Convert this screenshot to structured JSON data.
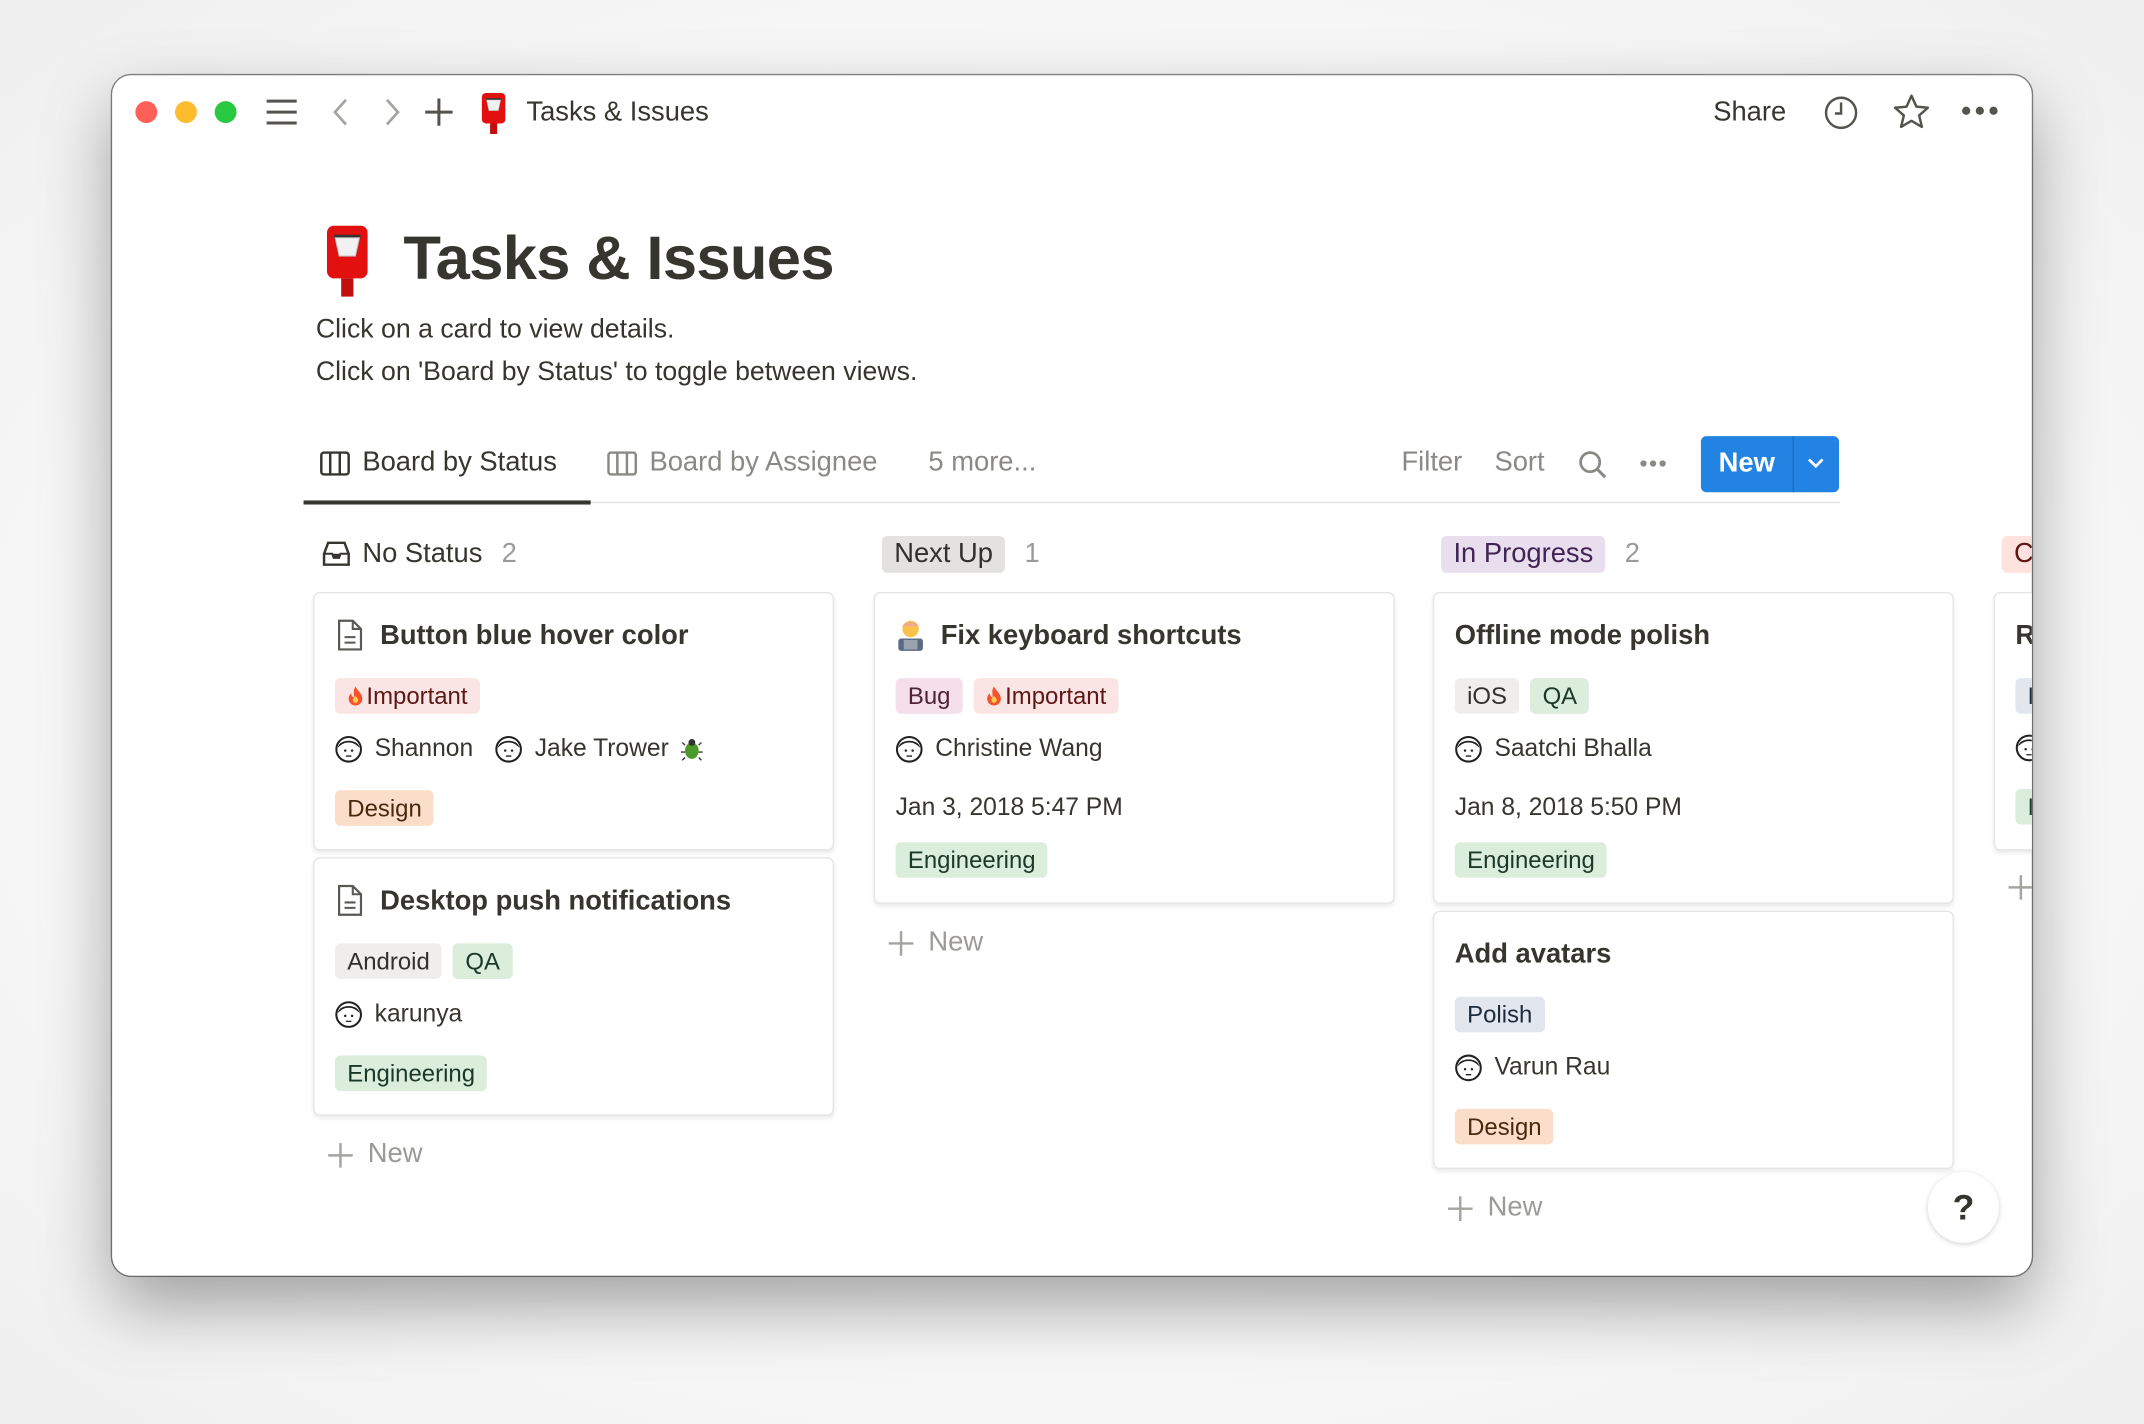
{
  "window": {
    "title": "Tasks & Issues",
    "share_label": "Share",
    "traffic_lights": {
      "close": "#ff5f57",
      "minimize": "#febc2e",
      "zoom": "#28c840"
    },
    "icons": [
      "menu-icon",
      "back-icon",
      "forward-icon",
      "plus-icon",
      "postbox-icon",
      "clock-icon",
      "star-icon",
      "more-icon"
    ]
  },
  "page": {
    "title": "Tasks & Issues",
    "icon": "postbox-icon",
    "description": [
      "Click on a card to view details.",
      "Click on 'Board by Status' to toggle between views."
    ]
  },
  "views": {
    "tabs": [
      {
        "label": "Board by Status",
        "active": true,
        "icon": "board-icon"
      },
      {
        "label": "Board by Assignee",
        "active": false,
        "icon": "board-icon"
      },
      {
        "label": "5 more...",
        "active": false
      }
    ],
    "filter_label": "Filter",
    "sort_label": "Sort",
    "new_label": "New",
    "accent": "#2383e2"
  },
  "tag_colors": {
    "red": {
      "bg": "#fbe4e4",
      "fg": "#5d1715"
    },
    "orange": {
      "bg": "#fadec9",
      "fg": "#49290e"
    },
    "green": {
      "bg": "#dbeddb",
      "fg": "#1c3829"
    },
    "gray": {
      "bg": "#efeeec",
      "fg": "#32302c"
    },
    "pink": {
      "bg": "#f4dfeb",
      "fg": "#4c2337"
    },
    "blue": {
      "bg": "#e2e6ee",
      "fg": "#1c2a3a"
    },
    "purple": {
      "bg": "#e8deee",
      "fg": "#412454"
    },
    "default": {
      "bg": "#e3e2e0",
      "fg": "#32302c"
    },
    "rose": {
      "bg": "#ffe2dd",
      "fg": "#5d1715"
    }
  },
  "columns": [
    {
      "name": "No Status",
      "count": "2",
      "style": "plain",
      "icon": "inbox-icon",
      "cards": [
        {
          "title": "Button blue hover color",
          "icon": "page-icon",
          "tags": [
            {
              "label": "Important",
              "color": "red",
              "icon": "fire-icon"
            }
          ],
          "people": [
            {
              "name": "Shannon"
            },
            {
              "name": "Jake Trower",
              "suffix_icon": "beetle-icon"
            }
          ],
          "team": {
            "label": "Design",
            "color": "orange"
          }
        },
        {
          "title": "Desktop push notifications",
          "icon": "page-icon",
          "tags": [
            {
              "label": "Android",
              "color": "gray"
            },
            {
              "label": "QA",
              "color": "green"
            }
          ],
          "people": [
            {
              "name": "karunya"
            }
          ],
          "team": {
            "label": "Engineering",
            "color": "green"
          }
        }
      ],
      "new_label": "New"
    },
    {
      "name": "Next Up",
      "count": "1",
      "style": "default",
      "cards": [
        {
          "title": "Fix keyboard shortcuts",
          "icon": "technologist-icon",
          "tags": [
            {
              "label": "Bug",
              "color": "pink"
            },
            {
              "label": "Important",
              "color": "red",
              "icon": "fire-icon"
            }
          ],
          "people": [
            {
              "name": "Christine Wang"
            }
          ],
          "date": "Jan 3, 2018 5:47 PM",
          "team": {
            "label": "Engineering",
            "color": "green"
          }
        }
      ],
      "new_label": "New"
    },
    {
      "name": "In Progress",
      "count": "2",
      "style": "purple",
      "cards": [
        {
          "title": "Offline mode polish",
          "tags": [
            {
              "label": "iOS",
              "color": "gray"
            },
            {
              "label": "QA",
              "color": "green"
            }
          ],
          "people": [
            {
              "name": "Saatchi Bhalla"
            }
          ],
          "date": "Jan 8, 2018 5:50 PM",
          "team": {
            "label": "Engineering",
            "color": "green"
          }
        },
        {
          "title": "Add avatars",
          "tags": [
            {
              "label": "Polish",
              "color": "blue"
            }
          ],
          "people": [
            {
              "name": "Varun Rau"
            }
          ],
          "team": {
            "label": "Design",
            "color": "orange"
          }
        }
      ],
      "new_label": "New"
    },
    {
      "name": "C",
      "count": "",
      "style": "rose",
      "cards": [
        {
          "title": "R",
          "tags": [
            {
              "label": "P",
              "color": "blue"
            }
          ],
          "people": [
            {
              "name": ""
            }
          ],
          "team": {
            "label": "E",
            "color": "green"
          }
        }
      ],
      "new_label": ""
    }
  ],
  "help_label": "?"
}
